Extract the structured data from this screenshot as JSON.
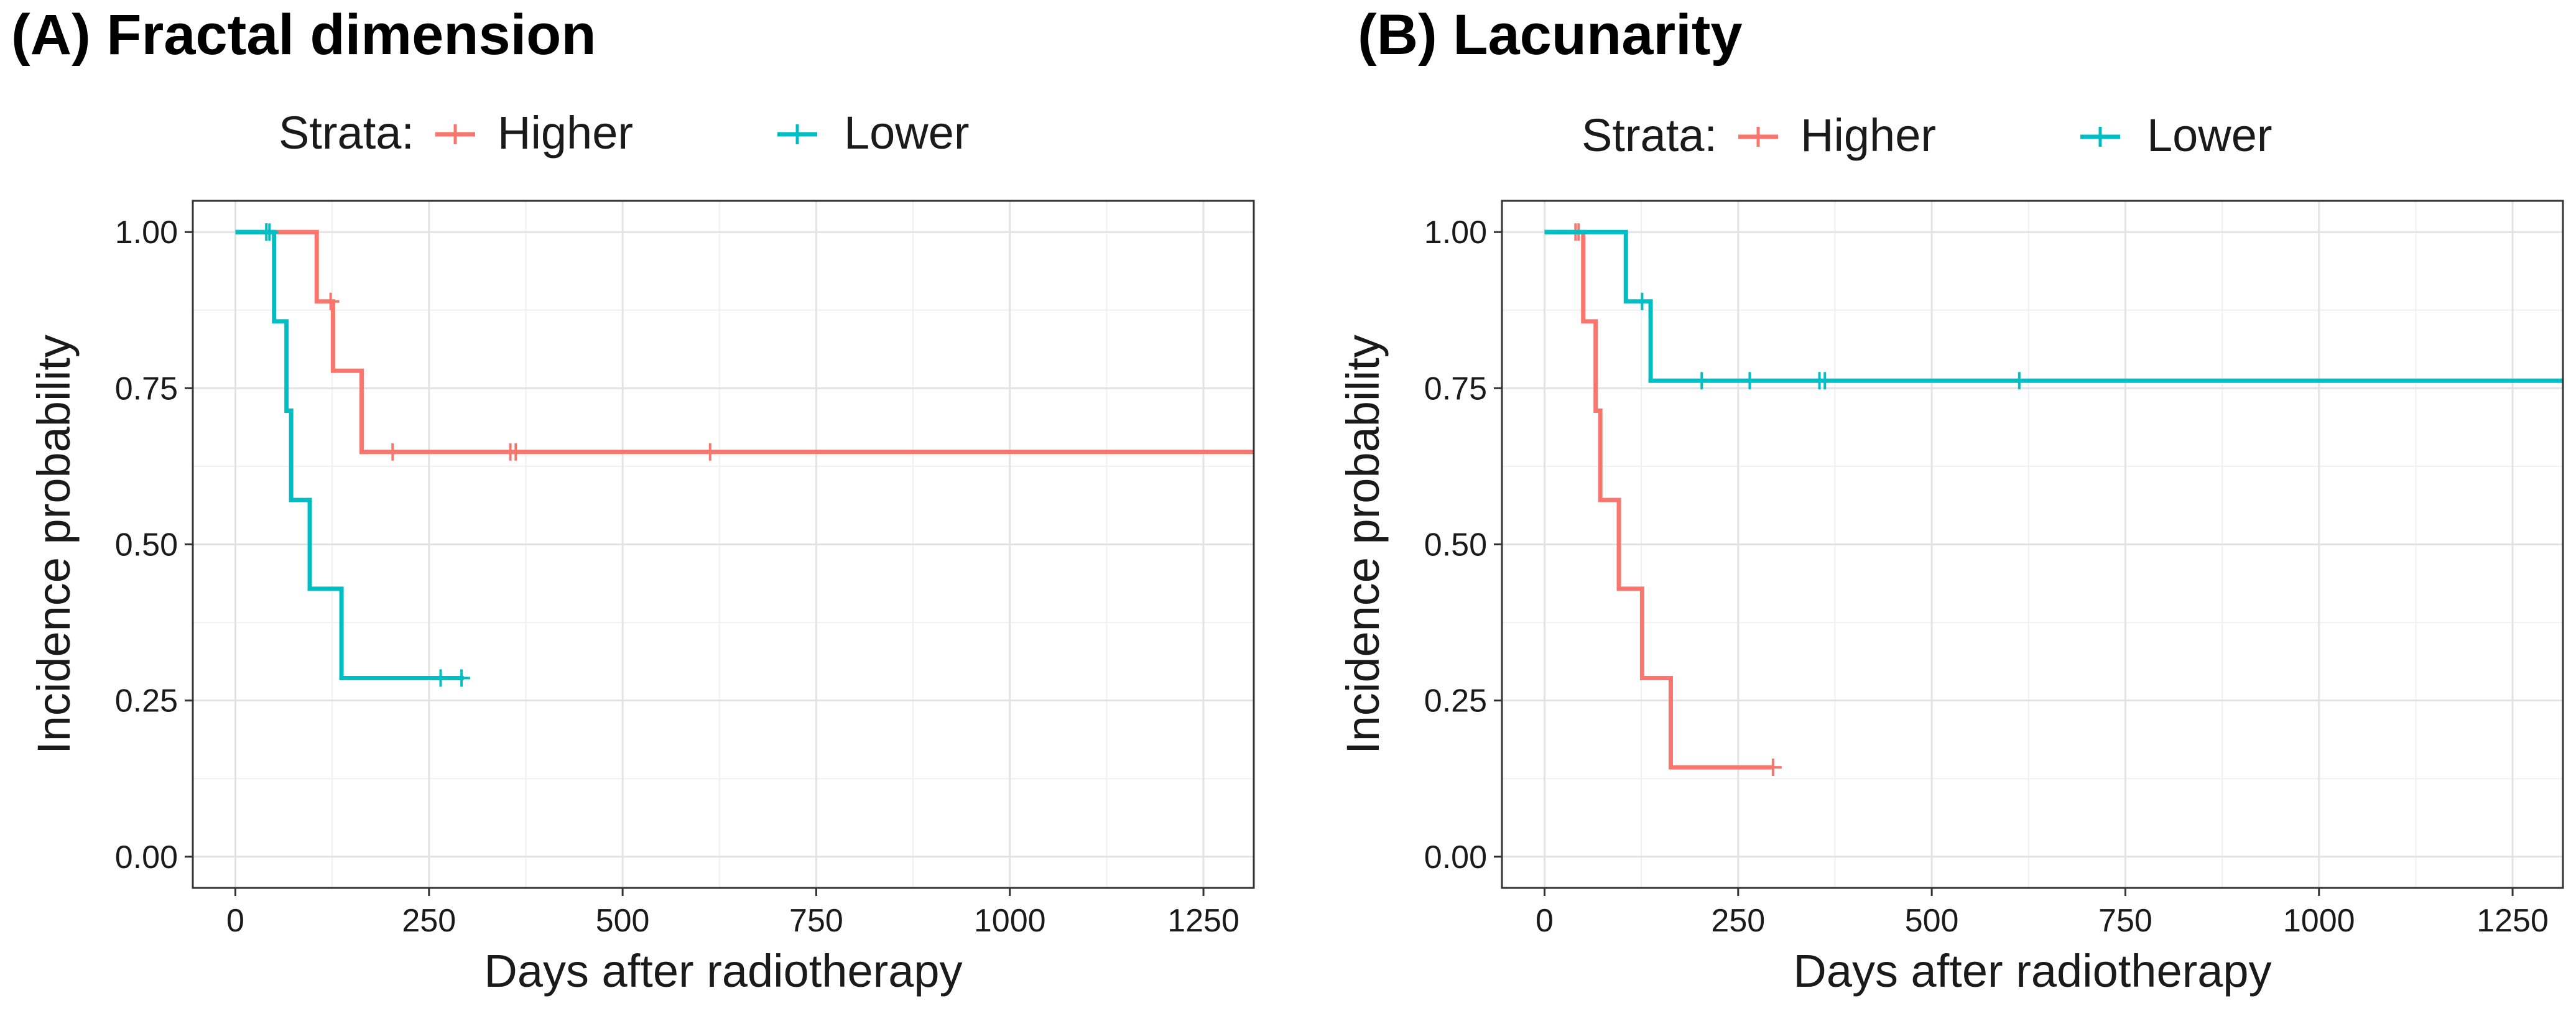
{
  "chart_data": [
    {
      "type": "line",
      "panel_title": "(A) Fractal dimension",
      "legend": {
        "title": "Strata:",
        "position": "top",
        "entries": [
          "Higher",
          "Lower"
        ]
      },
      "xlabel": "Days after radiotherapy",
      "ylabel": "Incidence probability",
      "xlim": [
        -55,
        1315
      ],
      "ylim": [
        -0.05,
        1.05
      ],
      "x_ticks": [
        0,
        250,
        500,
        750,
        1000,
        1250
      ],
      "x_tick_labels": [
        "0",
        "250",
        "500",
        "750",
        "1000",
        "1250"
      ],
      "y_ticks": [
        0,
        0.25,
        0.5,
        0.75,
        1.0
      ],
      "y_tick_labels": [
        "0.00",
        "0.25",
        "0.50",
        "0.75",
        "1.00"
      ],
      "grid": true,
      "series": [
        {
          "name": "Higher",
          "color": "#F8766D",
          "steps": [
            [
              0,
              1.0
            ],
            [
              105,
              0.889
            ],
            [
              126,
              0.778
            ],
            [
              163,
              0.648
            ],
            [
              1315,
              0.648
            ]
          ],
          "censor_times": [
            40,
            123,
            203,
            355,
            362,
            613
          ]
        },
        {
          "name": "Lower",
          "color": "#00BFC4",
          "steps": [
            [
              0,
              1.0
            ],
            [
              50,
              0.857
            ],
            [
              66,
              0.714
            ],
            [
              72,
              0.571
            ],
            [
              96,
              0.429
            ],
            [
              137,
              0.286
            ],
            [
              295,
              0.286
            ]
          ],
          "censor_times": [
            40,
            44,
            265,
            292
          ]
        }
      ]
    },
    {
      "type": "line",
      "panel_title": "(B) Lacunarity",
      "legend": {
        "title": "Strata:",
        "position": "top",
        "entries": [
          "Higher",
          "Lower"
        ]
      },
      "xlabel": "Days after radiotherapy",
      "ylabel": "Incidence probability",
      "xlim": [
        -55,
        1315
      ],
      "ylim": [
        -0.05,
        1.05
      ],
      "x_ticks": [
        0,
        250,
        500,
        750,
        1000,
        1250
      ],
      "x_tick_labels": [
        "0",
        "250",
        "500",
        "750",
        "1000",
        "1250"
      ],
      "y_ticks": [
        0,
        0.25,
        0.5,
        0.75,
        1.0
      ],
      "y_tick_labels": [
        "0.00",
        "0.25",
        "0.50",
        "0.75",
        "1.00"
      ],
      "grid": true,
      "series": [
        {
          "name": "Higher",
          "color": "#F8766D",
          "steps": [
            [
              0,
              1.0
            ],
            [
              50,
              0.857
            ],
            [
              66,
              0.714
            ],
            [
              72,
              0.571
            ],
            [
              96,
              0.429
            ],
            [
              126,
              0.286
            ],
            [
              163,
              0.143
            ],
            [
              295,
              0.143
            ]
          ],
          "censor_times": [
            40,
            44,
            295
          ]
        },
        {
          "name": "Lower",
          "color": "#00BFC4",
          "steps": [
            [
              0,
              1.0
            ],
            [
              105,
              0.889
            ],
            [
              137,
              0.762
            ],
            [
              1315,
              0.762
            ]
          ],
          "censor_times": [
            126,
            203,
            265,
            355,
            362,
            613
          ]
        }
      ]
    }
  ]
}
